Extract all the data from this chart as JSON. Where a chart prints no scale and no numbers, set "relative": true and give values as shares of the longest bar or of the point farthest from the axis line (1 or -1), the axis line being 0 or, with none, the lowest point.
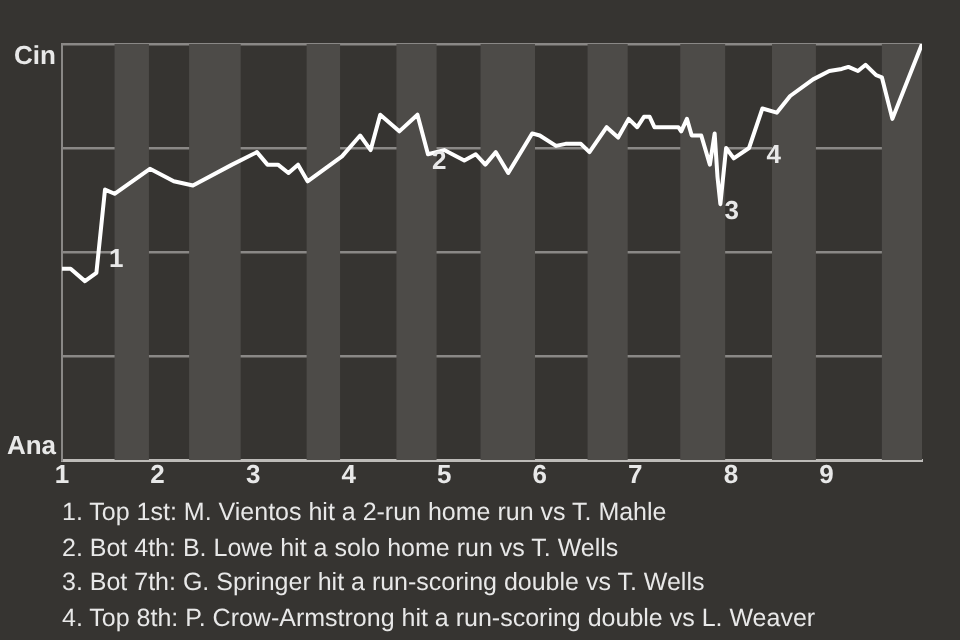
{
  "chart_data": {
    "type": "line",
    "relative": true,
    "x": [
      1,
      1.09,
      1.24,
      1.36,
      1.45,
      1.55,
      1.92,
      2.17,
      2.37,
      2.78,
      3.04,
      3.15,
      3.26,
      3.37,
      3.47,
      3.57,
      3.93,
      4.12,
      4.23,
      4.33,
      4.53,
      4.72,
      4.83,
      5.0,
      5.21,
      5.33,
      5.43,
      5.54,
      5.67,
      5.92,
      6.0,
      6.17,
      6.27,
      6.43,
      6.52,
      6.7,
      6.82,
      6.93,
      7.02,
      7.09,
      7.15,
      7.2,
      7.45,
      7.48,
      7.54,
      7.59,
      7.69,
      7.78,
      7.83,
      7.86,
      7.89,
      7.95,
      8.03,
      8.19,
      8.33,
      8.48,
      8.62,
      8.86,
      9.03,
      9.16,
      9.23,
      9.33,
      9.41,
      9.52,
      9.58,
      9.69,
      10
    ],
    "series": [
      {
        "color": "#ffffff",
        "values": [
          0.46,
          0.46,
          0.43,
          0.45,
          0.65,
          0.64,
          0.7,
          0.67,
          0.66,
          0.71,
          0.74,
          0.71,
          0.71,
          0.69,
          0.71,
          0.67,
          0.73,
          0.78,
          0.745,
          0.83,
          0.79,
          0.83,
          0.735,
          0.745,
          0.72,
          0.735,
          0.71,
          0.74,
          0.69,
          0.785,
          0.78,
          0.755,
          0.76,
          0.76,
          0.74,
          0.8,
          0.775,
          0.82,
          0.8,
          0.825,
          0.825,
          0.8,
          0.8,
          0.79,
          0.82,
          0.78,
          0.78,
          0.71,
          0.785,
          0.68,
          0.615,
          0.75,
          0.725,
          0.75,
          0.845,
          0.835,
          0.875,
          0.915,
          0.935,
          0.94,
          0.945,
          0.935,
          0.95,
          0.925,
          0.92,
          0.82,
          1
        ]
      }
    ],
    "xlim": [
      1,
      10
    ],
    "xticks": [
      1,
      2,
      3,
      4,
      5,
      6,
      7,
      8,
      9
    ],
    "tick_labels": "x",
    "grid": "y",
    "legend": false,
    "marker": "none",
    "line_style": "solid",
    "bands": [
      {
        "axis": "x",
        "from": 1.55,
        "to": 1.91,
        "color": "#4d4b48"
      },
      {
        "axis": "x",
        "from": 2.33,
        "to": 2.87,
        "color": "#4d4b48"
      },
      {
        "axis": "x",
        "from": 3.56,
        "to": 3.91,
        "color": "#4d4b48"
      },
      {
        "axis": "x",
        "from": 4.5,
        "to": 4.92,
        "color": "#4d4b48"
      },
      {
        "axis": "x",
        "from": 5.38,
        "to": 5.95,
        "color": "#4d4b48"
      },
      {
        "axis": "x",
        "from": 6.5,
        "to": 6.92,
        "color": "#4d4b48"
      },
      {
        "axis": "x",
        "from": 7.47,
        "to": 7.94,
        "color": "#4d4b48"
      },
      {
        "axis": "x",
        "from": 8.43,
        "to": 8.89,
        "color": "#4d4b48"
      },
      {
        "axis": "x",
        "from": 9.58,
        "to": 10,
        "color": "#4d4b48"
      }
    ],
    "annotations": [
      "Cin",
      "Ana",
      {
        "text": "1",
        "x": 1.45,
        "y": 0.5
      },
      {
        "text": "2",
        "x": 4.83,
        "y": 0.735
      },
      {
        "text": "3",
        "x": 7.89,
        "y": 0.615
      },
      {
        "text": "4",
        "x": 8.33,
        "y": 0.75
      },
      "1. Top 1st: M. Vientos hit a 2-run home run vs T. Mahle",
      "2. Bot 4th: B. Lowe hit a solo home run vs T. Wells",
      "3. Bot 7th: G. Springer hit a run-scoring double vs T. Wells",
      "4. Top 8th: P. Crow-Armstrong hit a run-scoring double vs L. Weaver"
    ]
  }
}
